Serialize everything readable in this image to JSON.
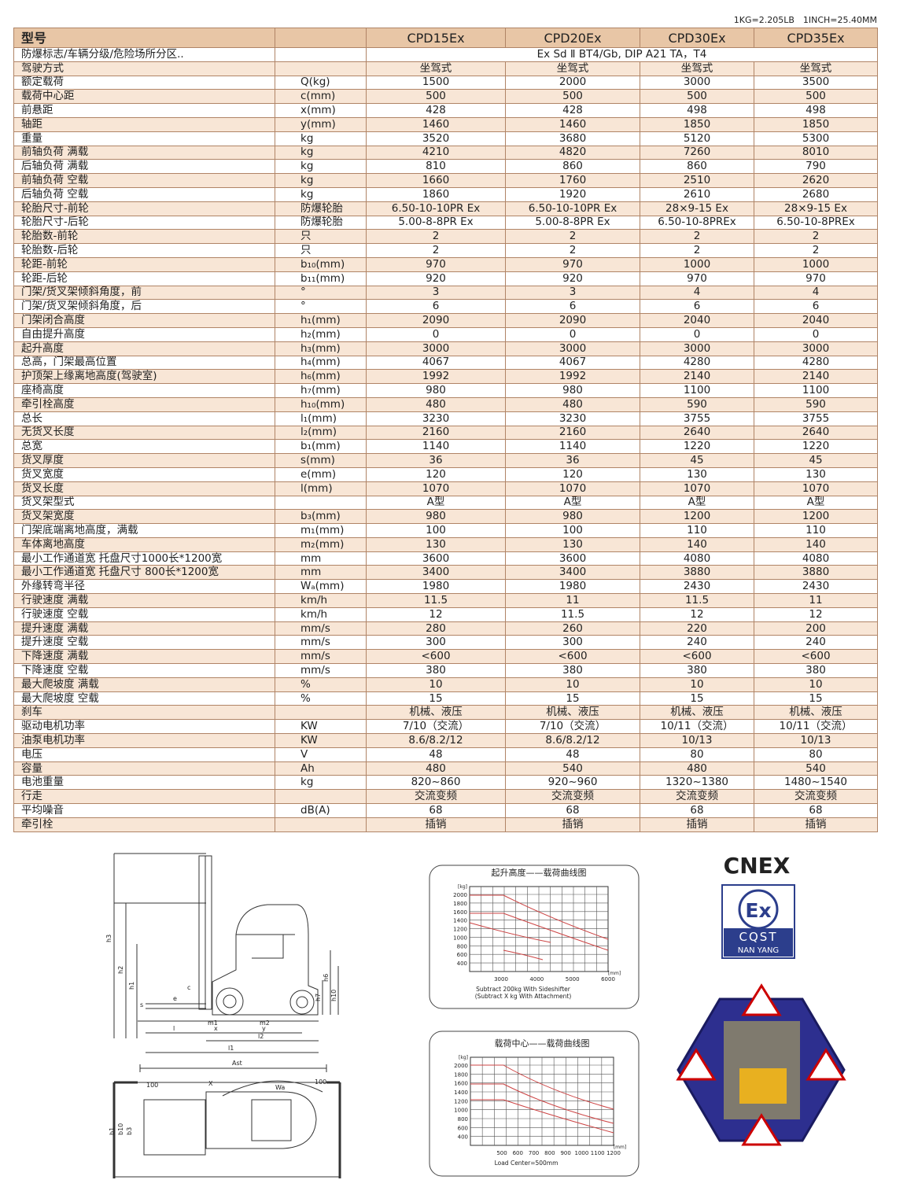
{
  "note": "1KG=2.205LB　1INCH=25.40MM",
  "table": {
    "header": {
      "label": "型号",
      "models": [
        "CPD15Ex",
        "CPD20Ex",
        "CPD30Ex",
        "CPD35Ex"
      ]
    },
    "rows": [
      {
        "label": "防爆标志/车辆分级/危险场所分区..",
        "merged": "Ex Sd Ⅱ BT4/Gb, DIP A21 TA，T4"
      },
      {
        "label": "驾驶方式",
        "values": [
          "坐驾式",
          "坐驾式",
          "坐驾式",
          "坐驾式"
        ]
      },
      {
        "label": "额定载荷",
        "unit": "Q(kg)",
        "values": [
          "1500",
          "2000",
          "3000",
          "3500"
        ]
      },
      {
        "label": "载荷中心距",
        "unit": "c(mm)",
        "values": [
          "500",
          "500",
          "500",
          "500"
        ]
      },
      {
        "label": "前悬距",
        "unit": "x(mm)",
        "values": [
          "428",
          "428",
          "498",
          "498"
        ]
      },
      {
        "label": "轴距",
        "unit": "y(mm)",
        "values": [
          "1460",
          "1460",
          "1850",
          "1850"
        ]
      },
      {
        "label": "重量",
        "unit": "kg",
        "values": [
          "3520",
          "3680",
          "5120",
          "5300"
        ]
      },
      {
        "label": "前轴负荷 满载",
        "unit": "kg",
        "values": [
          "4210",
          "4820",
          "7260",
          "8010"
        ]
      },
      {
        "label": "后轴负荷 满载",
        "unit": "kg",
        "values": [
          "810",
          "860",
          "860",
          "790"
        ]
      },
      {
        "label": "前轴负荷 空载",
        "unit": "kg",
        "values": [
          "1660",
          "1760",
          "2510",
          "2620"
        ]
      },
      {
        "label": "后轴负荷 空载",
        "unit": "kg",
        "values": [
          "1860",
          "1920",
          "2610",
          "2680"
        ]
      },
      {
        "label": "轮胎尺寸-前轮",
        "unit": "防爆轮胎",
        "values": [
          "6.50-10-10PR Ex",
          "6.50-10-10PR Ex",
          "28×9-15 Ex",
          "28×9-15 Ex"
        ]
      },
      {
        "label": "轮胎尺寸-后轮",
        "unit": "防爆轮胎",
        "values": [
          "5.00-8-8PR Ex",
          "5.00-8-8PR Ex",
          "6.50-10-8PREx",
          "6.50-10-8PREx"
        ]
      },
      {
        "label": "轮胎数-前轮",
        "unit": "只",
        "values": [
          "2",
          "2",
          "2",
          "2"
        ]
      },
      {
        "label": "轮胎数-后轮",
        "unit": "只",
        "values": [
          "2",
          "2",
          "2",
          "2"
        ]
      },
      {
        "label": "轮距-前轮",
        "unit": "b₁₀(mm)",
        "values": [
          "970",
          "970",
          "1000",
          "1000"
        ]
      },
      {
        "label": "轮距-后轮",
        "unit": "b₁₁(mm)",
        "values": [
          "920",
          "920",
          "970",
          "970"
        ]
      },
      {
        "label": "门架/货叉架倾斜角度，前",
        "unit": "°",
        "values": [
          "3",
          "3",
          "4",
          "4"
        ]
      },
      {
        "label": "门架/货叉架倾斜角度，后",
        "unit": "°",
        "values": [
          "6",
          "6",
          "6",
          "6"
        ]
      },
      {
        "label": "门架闭合高度",
        "unit": "h₁(mm)",
        "values": [
          "2090",
          "2090",
          "2040",
          "2040"
        ]
      },
      {
        "label": "自由提升高度",
        "unit": "h₂(mm)",
        "values": [
          "0",
          "0",
          "0",
          "0"
        ]
      },
      {
        "label": "起升高度",
        "unit": "h₃(mm)",
        "values": [
          "3000",
          "3000",
          "3000",
          "3000"
        ]
      },
      {
        "label": "总高，门架最高位置",
        "unit": "h₄(mm)",
        "values": [
          "4067",
          "4067",
          "4280",
          "4280"
        ]
      },
      {
        "label": "护顶架上缘离地高度(驾驶室)",
        "unit": "h₆(mm)",
        "values": [
          "1992",
          "1992",
          "2140",
          "2140"
        ]
      },
      {
        "label": "座椅高度",
        "unit": "h₇(mm)",
        "values": [
          "980",
          "980",
          "1100",
          "1100"
        ]
      },
      {
        "label": "牵引栓高度",
        "unit": "h₁₀(mm)",
        "values": [
          "480",
          "480",
          "590",
          "590"
        ]
      },
      {
        "label": "总长",
        "unit": "l₁(mm)",
        "values": [
          "3230",
          "3230",
          "3755",
          "3755"
        ]
      },
      {
        "label": "无货叉长度",
        "unit": "l₂(mm)",
        "values": [
          "2160",
          "2160",
          "2640",
          "2640"
        ]
      },
      {
        "label": "总宽",
        "unit": "b₁(mm)",
        "values": [
          "1140",
          "1140",
          "1220",
          "1220"
        ]
      },
      {
        "label": "货叉厚度",
        "unit": "s(mm)",
        "values": [
          "36",
          "36",
          "45",
          "45"
        ]
      },
      {
        "label": "货叉宽度",
        "unit": "e(mm)",
        "values": [
          "120",
          "120",
          "130",
          "130"
        ]
      },
      {
        "label": "货叉长度",
        "unit": "l(mm)",
        "values": [
          "1070",
          "1070",
          "1070",
          "1070"
        ]
      },
      {
        "label": "货叉架型式",
        "values": [
          "A型",
          "A型",
          "A型",
          "A型"
        ]
      },
      {
        "label": "货叉架宽度",
        "unit": "b₃(mm)",
        "values": [
          "980",
          "980",
          "1200",
          "1200"
        ]
      },
      {
        "label": "门架底端离地高度，满载",
        "unit": "m₁(mm)",
        "values": [
          "100",
          "100",
          "110",
          "110"
        ]
      },
      {
        "label": "车体离地高度",
        "unit": "m₂(mm)",
        "values": [
          "130",
          "130",
          "140",
          "140"
        ]
      },
      {
        "label": "最小工作通道宽 托盘尺寸1000长*1200宽",
        "unit": "mm",
        "values": [
          "3600",
          "3600",
          "4080",
          "4080"
        ]
      },
      {
        "label": "最小工作通道宽 托盘尺寸 800长*1200宽",
        "unit": "mm",
        "values": [
          "3400",
          "3400",
          "3880",
          "3880"
        ]
      },
      {
        "label": "外缘转弯半径",
        "unit": "Wₐ(mm)",
        "values": [
          "1980",
          "1980",
          "2430",
          "2430"
        ]
      },
      {
        "label": "行驶速度 满载",
        "unit": "km/h",
        "values": [
          "11.5",
          "11",
          "11.5",
          "11"
        ]
      },
      {
        "label": "行驶速度 空载",
        "unit": "km/h",
        "values": [
          "12",
          "11.5",
          "12",
          "12"
        ]
      },
      {
        "label": "提升速度 满载",
        "unit": "mm/s",
        "values": [
          "280",
          "260",
          "220",
          "200"
        ]
      },
      {
        "label": "提升速度 空载",
        "unit": "mm/s",
        "values": [
          "300",
          "300",
          "240",
          "240"
        ]
      },
      {
        "label": "下降速度 满载",
        "unit": "mm/s",
        "values": [
          "<600",
          "<600",
          "<600",
          "<600"
        ]
      },
      {
        "label": "下降速度 空载",
        "unit": "mm/s",
        "values": [
          "380",
          "380",
          "380",
          "380"
        ]
      },
      {
        "label": "最大爬坡度 满载",
        "unit": "%",
        "values": [
          "10",
          "10",
          "10",
          "10"
        ]
      },
      {
        "label": "最大爬坡度 空载",
        "unit": "%",
        "values": [
          "15",
          "15",
          "15",
          "15"
        ]
      },
      {
        "label": "刹车",
        "values": [
          "机械、液压",
          "机械、液压",
          "机械、液压",
          "机械、液压"
        ]
      },
      {
        "label": "驱动电机功率",
        "unit": "KW",
        "values": [
          "7/10（交流）",
          "7/10（交流）",
          "10/11（交流）",
          "10/11（交流）"
        ]
      },
      {
        "label": "油泵电机功率",
        "unit": "KW",
        "values": [
          "8.6/8.2/12",
          "8.6/8.2/12",
          "10/13",
          "10/13"
        ]
      },
      {
        "label": "电压",
        "unit": "V",
        "values": [
          "48",
          "48",
          "80",
          "80"
        ]
      },
      {
        "label": "容量",
        "unit": "Ah",
        "values": [
          "480",
          "540",
          "480",
          "540"
        ]
      },
      {
        "label": "电池重量",
        "unit": "kg",
        "values": [
          "820~860",
          "920~960",
          "1320~1380",
          "1480~1540"
        ]
      },
      {
        "label": "行走",
        "values": [
          "交流变频",
          "交流变频",
          "交流变频",
          "交流变频"
        ]
      },
      {
        "label": "平均噪音",
        "unit": "dB(A)",
        "values": [
          "68",
          "68",
          "68",
          "68"
        ]
      },
      {
        "label": "牵引栓",
        "values": [
          "插销",
          "插销",
          "插销",
          "插销"
        ]
      }
    ]
  },
  "drawing": {
    "labels": [
      "h3",
      "h2",
      "h1",
      "h6",
      "h7",
      "h10",
      "c",
      "e",
      "s",
      "m1",
      "m2",
      "l",
      "x",
      "y",
      "l2",
      "l1",
      "Ast",
      "100",
      "X",
      "Wa",
      "100",
      "b1",
      "b10",
      "b3"
    ]
  },
  "chart1": {
    "title": "起升高度——载荷曲线图",
    "y_unit": "[kg]",
    "yticks": [
      "2000",
      "1800",
      "1600",
      "1400",
      "1200",
      "1000",
      "800",
      "600",
      "400"
    ],
    "x_unit": "[mm]",
    "xticks": [
      "3000",
      "4000",
      "5000",
      "6000"
    ],
    "notes": [
      "Subtract 200kg With Sideshifter",
      "(Subtract X kg With Attachment)"
    ]
  },
  "chart2": {
    "title": "载荷中心——载荷曲线图",
    "y_unit": "[kg]",
    "yticks": [
      "2000",
      "1800",
      "1600",
      "1400",
      "1200",
      "1000",
      "800",
      "600",
      "400"
    ],
    "x_unit": "[mm]",
    "xticks": [
      "500",
      "600",
      "700",
      "800",
      "900",
      "1000",
      "1100",
      "1200"
    ],
    "notes": [
      "Load Center=500mm"
    ]
  },
  "logo": {
    "brand": "CNEX",
    "mark": "Ex",
    "org": "CQST",
    "city": "NAN YANG"
  }
}
